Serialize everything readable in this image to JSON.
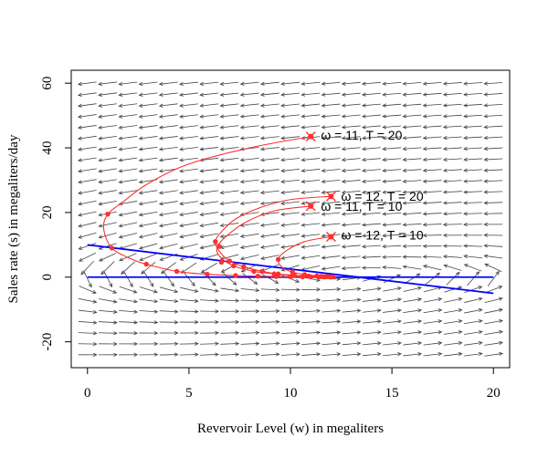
{
  "chart_data": {
    "type": "line",
    "title": "",
    "xlabel": "Revervoir Level (w) in megaliters",
    "ylabel": "Sales rate (s) in megaliters/day",
    "xlim": [
      -0.8,
      20.8
    ],
    "ylim": [
      -28,
      64
    ],
    "x_ticks": [
      0,
      5,
      10,
      15,
      20
    ],
    "y_ticks": [
      -20,
      0,
      20,
      40,
      60
    ],
    "grid": false,
    "legend": "none",
    "colors": {
      "trajectory": "#ff3030",
      "nullcline": "#0000ff",
      "vector_field": "#444444",
      "axes": "#000000"
    },
    "vector_field": {
      "x_range": [
        0,
        20
      ],
      "y_range": [
        -24,
        60
      ],
      "nx": 21,
      "ny": 26,
      "description": "direction arrows"
    },
    "nullclines": [
      {
        "x": [
          0,
          20
        ],
        "y": [
          10,
          -5
        ]
      },
      {
        "x": [
          0,
          20
        ],
        "y": [
          0,
          0
        ]
      }
    ],
    "series": [
      {
        "name": "ω = 11, T = 20",
        "points": [
          [
            11.0,
            43.5
          ],
          [
            8.0,
            40.0
          ],
          [
            5.0,
            35.0
          ],
          [
            3.0,
            29.0
          ],
          [
            1.8,
            23.5
          ],
          [
            1.0,
            19.5
          ],
          [
            0.8,
            15.0
          ],
          [
            1.2,
            9.0
          ],
          [
            2.2,
            5.5
          ],
          [
            2.9,
            4.0
          ],
          [
            4.4,
            1.8
          ],
          [
            5.9,
            0.9
          ],
          [
            7.3,
            0.5
          ],
          [
            8.4,
            0.3
          ],
          [
            9.3,
            0.2
          ],
          [
            10.0,
            0.15
          ],
          [
            10.6,
            0.1
          ],
          [
            11.0,
            0.08
          ],
          [
            11.4,
            0.06
          ],
          [
            11.7,
            0.05
          ],
          [
            11.95,
            0.05
          ]
        ],
        "markers": [
          [
            1.0,
            19.5
          ],
          [
            1.2,
            9.0
          ],
          [
            2.9,
            4.0
          ],
          [
            4.4,
            1.8
          ],
          [
            5.9,
            0.9
          ],
          [
            7.3,
            0.5
          ],
          [
            8.4,
            0.3
          ],
          [
            9.3,
            0.2
          ],
          [
            10.0,
            0.15
          ],
          [
            10.6,
            0.1
          ],
          [
            11.0,
            0.08
          ],
          [
            11.4,
            0.06
          ],
          [
            11.7,
            0.05
          ],
          [
            11.95,
            0.05
          ]
        ],
        "start": [
          11.0,
          43.5
        ]
      },
      {
        "name": "ω = 12, T = 20",
        "points": [
          [
            12.0,
            25.0
          ],
          [
            10.0,
            24.0
          ],
          [
            8.5,
            21.5
          ],
          [
            7.3,
            18.0
          ],
          [
            6.6,
            14.0
          ],
          [
            6.3,
            11.0
          ],
          [
            6.5,
            8.0
          ],
          [
            7.0,
            5.0
          ],
          [
            7.7,
            3.2
          ],
          [
            8.6,
            1.8
          ],
          [
            9.4,
            1.0
          ],
          [
            10.2,
            0.6
          ],
          [
            10.9,
            0.35
          ],
          [
            11.5,
            0.2
          ],
          [
            12.0,
            0.1
          ]
        ],
        "markers": [
          [
            6.3,
            11.0
          ],
          [
            7.0,
            5.0
          ],
          [
            7.7,
            3.2
          ],
          [
            8.6,
            1.8
          ],
          [
            9.4,
            1.0
          ],
          [
            10.2,
            0.6
          ],
          [
            10.9,
            0.35
          ],
          [
            11.5,
            0.2
          ],
          [
            12.0,
            0.1
          ]
        ],
        "start": [
          12.0,
          25.0
        ]
      },
      {
        "name": "ω = 11, T = 10",
        "points": [
          [
            11.0,
            22.0
          ],
          [
            9.2,
            20.5
          ],
          [
            7.8,
            17.0
          ],
          [
            6.9,
            13.0
          ],
          [
            6.4,
            9.5
          ],
          [
            6.5,
            6.5
          ],
          [
            7.2,
            3.5
          ],
          [
            8.2,
            1.8
          ],
          [
            9.2,
            1.0
          ],
          [
            10.1,
            0.5
          ],
          [
            10.9,
            0.25
          ],
          [
            11.6,
            0.12
          ],
          [
            12.0,
            0.05
          ]
        ],
        "markers": [
          [
            6.5,
            9.5
          ],
          [
            6.6,
            4.6
          ],
          [
            7.2,
            3.5
          ],
          [
            8.2,
            1.8
          ],
          [
            9.2,
            1.0
          ],
          [
            10.1,
            0.5
          ],
          [
            10.9,
            0.25
          ],
          [
            11.6,
            0.12
          ],
          [
            12.0,
            0.05
          ]
        ],
        "start": [
          11.0,
          22.0
        ]
      },
      {
        "name": "ω = 12, T = 10",
        "points": [
          [
            12.0,
            12.5
          ],
          [
            10.7,
            11.0
          ],
          [
            9.8,
            8.2
          ],
          [
            9.4,
            5.5
          ],
          [
            9.6,
            3.0
          ],
          [
            10.1,
            1.6
          ],
          [
            10.7,
            0.8
          ],
          [
            11.3,
            0.4
          ],
          [
            11.8,
            0.2
          ],
          [
            12.1,
            0.1
          ]
        ],
        "markers": [
          [
            9.4,
            5.5
          ],
          [
            10.1,
            1.6
          ],
          [
            10.7,
            0.8
          ],
          [
            11.3,
            0.4
          ],
          [
            11.8,
            0.2
          ],
          [
            12.1,
            0.1
          ]
        ],
        "start": [
          12.0,
          12.5
        ]
      }
    ],
    "annotations": [
      {
        "text": "ω = 11, T = 20",
        "x": 11.5,
        "y": 44
      },
      {
        "text": "ω = 12, T = 20",
        "x": 12.5,
        "y": 25
      },
      {
        "text": "ω = 11, T = 10",
        "x": 11.5,
        "y": 22
      },
      {
        "text": "ω = 12, T = 10",
        "x": 12.5,
        "y": 13
      }
    ]
  }
}
